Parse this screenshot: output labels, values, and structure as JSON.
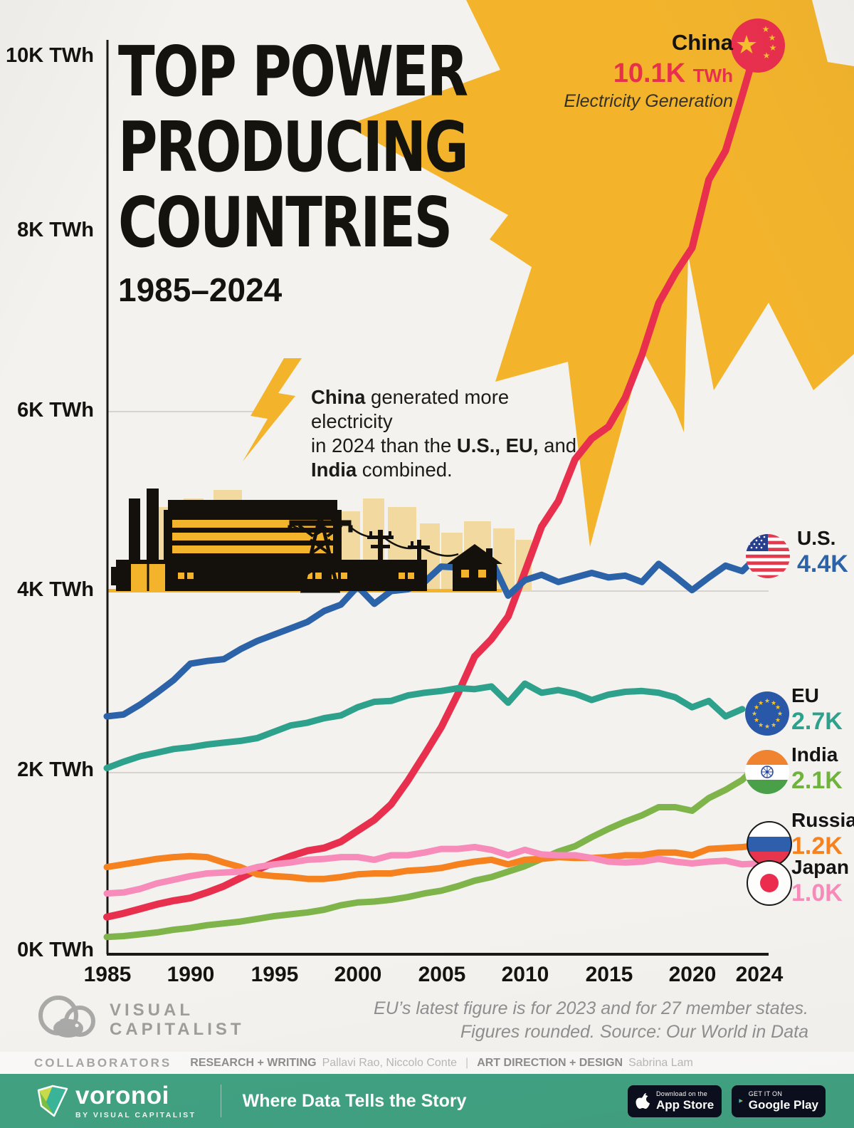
{
  "title": {
    "line1": "TOP POWER",
    "line2": "PRODUCING",
    "line3": "COUNTRIES",
    "subtitle": "1985–2024"
  },
  "callout": {
    "country": "China",
    "value": "10.1K",
    "unit": "TWh",
    "sublabel": "Electricity Generation"
  },
  "annotation": {
    "l1_bold": "China",
    "l1_rest": " generated more electricity",
    "l2_pre": "in 2024 than the ",
    "l2_bold": "U.S., EU,",
    "l2_post": " and",
    "l3_bold": "India",
    "l3_rest": " combined."
  },
  "legend": [
    {
      "country": "U.S.",
      "value": "4.4K",
      "color": "#2b62a8",
      "flag": "us-flag-icon"
    },
    {
      "country": "EU",
      "value": "2.7K",
      "color": "#2ea18c",
      "flag": "eu-flag-icon"
    },
    {
      "country": "India",
      "value": "2.1K",
      "color": "#6fb33e",
      "flag": "india-flag-icon"
    },
    {
      "country": "Russia",
      "value": "1.2K",
      "color": "#f5821f",
      "flag": "russia-flag-icon"
    },
    {
      "country": "Japan",
      "value": "1.0K",
      "color": "#f78bba",
      "flag": "japan-flag-icon"
    }
  ],
  "axis": {
    "y_labels": [
      "10K TWh",
      "8K TWh",
      "6K TWh",
      "4K TWh",
      "2K TWh",
      "0K TWh"
    ],
    "x_labels": [
      "1985",
      "1990",
      "1995",
      "2000",
      "2005",
      "2010",
      "2015",
      "2020",
      "2024"
    ]
  },
  "chart_data": {
    "type": "line",
    "title": "Top Power Producing Countries 1985–2024",
    "ylabel": "Electricity generation (thousand TWh)",
    "ylim": [
      0,
      10
    ],
    "x_start": 1985,
    "x_end": 2024,
    "grid": "horizontal",
    "legend_position": "right",
    "series": [
      {
        "name": "China",
        "color": "#e8304e",
        "end_label": "10.1K TWh",
        "values": [
          0.41,
          0.45,
          0.5,
          0.55,
          0.59,
          0.62,
          0.68,
          0.75,
          0.84,
          0.93,
          1.01,
          1.08,
          1.14,
          1.17,
          1.24,
          1.36,
          1.48,
          1.65,
          1.91,
          2.2,
          2.5,
          2.87,
          3.28,
          3.47,
          3.72,
          4.21,
          4.71,
          4.99,
          5.45,
          5.68,
          5.81,
          6.13,
          6.6,
          7.17,
          7.5,
          7.78,
          8.53,
          8.85,
          9.46,
          10.09
        ]
      },
      {
        "name": "U.S.",
        "color": "#2b62a8",
        "end_label": "4.4K",
        "values": [
          2.62,
          2.64,
          2.75,
          2.88,
          3.02,
          3.2,
          3.23,
          3.25,
          3.36,
          3.45,
          3.52,
          3.59,
          3.66,
          3.78,
          3.85,
          4.05,
          3.86,
          4.0,
          4.02,
          4.1,
          4.27,
          4.26,
          4.34,
          4.34,
          3.95,
          4.12,
          4.18,
          4.1,
          4.15,
          4.2,
          4.15,
          4.17,
          4.1,
          4.3,
          4.16,
          4.01,
          4.15,
          4.28,
          4.22,
          4.4
        ]
      },
      {
        "name": "EU",
        "color": "#2ea18c",
        "end_label": "2.7K",
        "end_year": 2023,
        "values": [
          2.05,
          2.12,
          2.18,
          2.22,
          2.26,
          2.28,
          2.31,
          2.33,
          2.35,
          2.38,
          2.45,
          2.52,
          2.55,
          2.6,
          2.63,
          2.72,
          2.78,
          2.79,
          2.85,
          2.88,
          2.9,
          2.93,
          2.92,
          2.95,
          2.77,
          2.98,
          2.88,
          2.91,
          2.87,
          2.8,
          2.86,
          2.89,
          2.9,
          2.88,
          2.83,
          2.72,
          2.79,
          2.62,
          2.7
        ]
      },
      {
        "name": "India",
        "color": "#7eb44a",
        "end_label": "2.1K",
        "values": [
          0.19,
          0.2,
          0.22,
          0.24,
          0.27,
          0.29,
          0.32,
          0.34,
          0.36,
          0.39,
          0.42,
          0.44,
          0.46,
          0.49,
          0.54,
          0.57,
          0.58,
          0.6,
          0.63,
          0.67,
          0.7,
          0.75,
          0.81,
          0.85,
          0.91,
          0.97,
          1.05,
          1.13,
          1.19,
          1.29,
          1.38,
          1.46,
          1.53,
          1.62,
          1.62,
          1.58,
          1.72,
          1.81,
          1.92,
          2.1
        ]
      },
      {
        "name": "Russia",
        "color": "#f5821f",
        "end_label": "1.2K",
        "values": [
          0.96,
          0.99,
          1.02,
          1.05,
          1.07,
          1.08,
          1.07,
          1.01,
          0.96,
          0.88,
          0.86,
          0.85,
          0.83,
          0.83,
          0.85,
          0.88,
          0.89,
          0.89,
          0.92,
          0.93,
          0.95,
          0.99,
          1.02,
          1.04,
          0.99,
          1.04,
          1.05,
          1.07,
          1.06,
          1.06,
          1.07,
          1.09,
          1.09,
          1.12,
          1.12,
          1.09,
          1.16,
          1.17,
          1.18,
          1.2
        ]
      },
      {
        "name": "Japan",
        "color": "#f78bba",
        "end_label": "1.0K",
        "values": [
          0.67,
          0.68,
          0.72,
          0.78,
          0.82,
          0.86,
          0.89,
          0.9,
          0.91,
          0.96,
          0.99,
          1.01,
          1.04,
          1.05,
          1.07,
          1.07,
          1.04,
          1.09,
          1.09,
          1.12,
          1.16,
          1.16,
          1.18,
          1.15,
          1.09,
          1.15,
          1.1,
          1.09,
          1.09,
          1.06,
          1.02,
          1.01,
          1.02,
          1.05,
          1.02,
          1.0,
          1.02,
          1.03,
          0.99,
          1.0
        ]
      }
    ]
  },
  "footer": {
    "source_line1": "EU’s latest figure is for 2023 and for 27 member states.",
    "source_line2": "Figures rounded. Source: Our World in Data",
    "vc_logo_line1": "VISUAL",
    "vc_logo_line2": "CAPITALIST"
  },
  "collaborators": {
    "header": "COLLABORATORS",
    "role1": "RESEARCH + WRITING",
    "names1": "Pallavi Rao, Niccolo Conte",
    "separator": "|",
    "role2": "ART DIRECTION + DESIGN",
    "names2": "Sabrina Lam"
  },
  "bottom_bar": {
    "brand": "voronoi",
    "brand_sub": "BY VISUAL CAPITALIST",
    "tagline": "Where Data Tells the Story",
    "appstore_small": "Download on the",
    "appstore_big": "App Store",
    "googleplay_small": "GET IT ON",
    "googleplay_big": "Google Play"
  },
  "colors": {
    "background": "#f4f2ee",
    "star_yellow": "#f3b42c",
    "bar_green": "#41a181",
    "china": "#e8304e",
    "us": "#2b62a8",
    "eu": "#2ea18c",
    "india": "#7eb44a",
    "russia": "#f5821f",
    "japan": "#f78bba"
  }
}
